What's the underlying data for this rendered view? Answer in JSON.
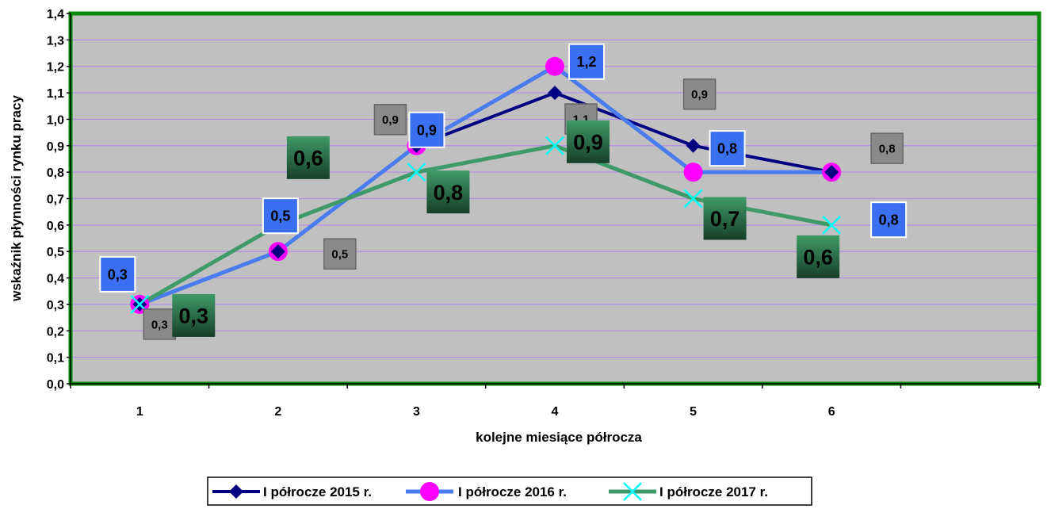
{
  "chart_data": {
    "type": "line",
    "title": "",
    "xlabel": "kolejne miesiące półrocza",
    "ylabel": "wskaźnik płynności rynku pracy",
    "categories": [
      "1",
      "2",
      "3",
      "4",
      "5",
      "6"
    ],
    "ylim": [
      0.0,
      1.4
    ],
    "y_ticks": [
      "0,0",
      "0,1",
      "0,2",
      "0,3",
      "0,4",
      "0,5",
      "0,6",
      "0,7",
      "0,8",
      "0,9",
      "1,0",
      "1,1",
      "1,2",
      "1,3",
      "1,4"
    ],
    "grid": true,
    "legend_position": "bottom",
    "series": [
      {
        "name": "I półrocze 2015 r.",
        "values": [
          0.3,
          0.5,
          0.9,
          1.1,
          0.9,
          0.8
        ],
        "labels": [
          "0,3",
          "0,5",
          "0,9",
          "1,1",
          "0,9",
          "0,8"
        ],
        "color": "#000080",
        "marker": "diamond",
        "label_fill": "#808080"
      },
      {
        "name": "I półrocze 2016 r.",
        "values": [
          0.3,
          0.5,
          0.9,
          1.2,
          0.8,
          0.8
        ],
        "labels": [
          "0,3",
          "0,5",
          "0,9",
          "1,2",
          "0,8",
          "0,8"
        ],
        "color": "#4a7cf0",
        "marker": "circle",
        "marker_color": "#ff00ff",
        "label_fill": "#3a6ff0"
      },
      {
        "name": "I półrocze 2017 r.",
        "values": [
          0.3,
          0.6,
          0.8,
          0.9,
          0.7,
          0.6
        ],
        "labels": [
          "0,3",
          "0,6",
          "0,8",
          "0,9",
          "0,7",
          "0,6"
        ],
        "color": "#3e9a68",
        "marker": "x",
        "marker_color": "#00ffff",
        "label_fill": "#2f7d52"
      }
    ],
    "plot_background": "#c0c0c0",
    "plot_border": "#0a8a0a",
    "gridline_color": "#b48ee8"
  }
}
